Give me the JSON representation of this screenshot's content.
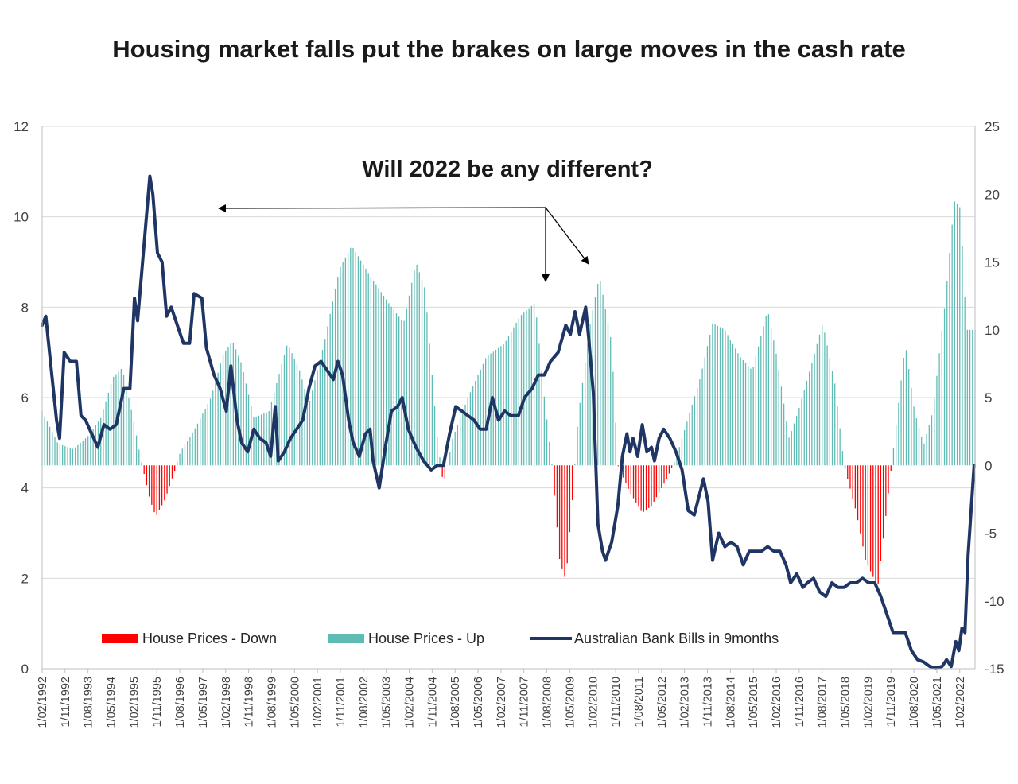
{
  "chart_data": {
    "type": "bar+line",
    "title": "Housing market falls put the brakes on large moves in the cash rate",
    "annotation": "Will 2022 be any different?",
    "left_axis": {
      "ylim": [
        0,
        12
      ],
      "ticks": [
        "0",
        "2",
        "4",
        "6",
        "8",
        "10",
        "12"
      ],
      "series": "Australian Bank Bills in 9months"
    },
    "right_axis": {
      "ylim": [
        -15,
        25
      ],
      "ticks": [
        "-15",
        "-10",
        "-5",
        "0",
        "5",
        "10",
        "15",
        "20",
        "25"
      ],
      "series": "House Prices"
    },
    "x_start": "1992-02",
    "x_end": "2022-06",
    "x_ticks": [
      "1/02/1992",
      "1/11/1992",
      "1/08/1993",
      "1/05/1994",
      "1/02/1995",
      "1/11/1995",
      "1/08/1996",
      "1/05/1997",
      "1/02/1998",
      "1/11/1998",
      "1/08/1999",
      "1/05/2000",
      "1/02/2001",
      "1/11/2001",
      "1/08/2002",
      "1/05/2003",
      "1/02/2004",
      "1/11/2004",
      "1/08/2005",
      "1/05/2006",
      "1/02/2007",
      "1/11/2007",
      "1/08/2008",
      "1/05/2009",
      "1/02/2010",
      "1/11/2010",
      "1/08/2011",
      "1/05/2012",
      "1/02/2013",
      "1/11/2013",
      "1/08/2014",
      "1/05/2015",
      "1/02/2016",
      "1/11/2016",
      "1/08/2017",
      "1/05/2018",
      "1/02/2019",
      "1/11/2019",
      "1/08/2020",
      "1/05/2021",
      "1/02/2022"
    ],
    "legend": [
      {
        "name": "House Prices - Down",
        "color": "#ff0000",
        "kind": "bar"
      },
      {
        "name": "House Prices - Up",
        "color": "#5fbcb5",
        "kind": "bar"
      },
      {
        "name": "Australian Bank Bills in 9months",
        "color": "#1f3564",
        "kind": "line"
      }
    ],
    "house_prices_keypoints": [
      [
        1992.08,
        4
      ],
      [
        1992.6,
        1.6
      ],
      [
        1993.1,
        1.2
      ],
      [
        1993.6,
        2.2
      ],
      [
        1994.0,
        3.5
      ],
      [
        1994.4,
        6.5
      ],
      [
        1994.7,
        7.2
      ],
      [
        1995.1,
        3
      ],
      [
        1995.3,
        0.5
      ],
      [
        1995.6,
        -2.5
      ],
      [
        1995.8,
        -3.8
      ],
      [
        1996.1,
        -2.5
      ],
      [
        1996.4,
        -0.5
      ],
      [
        1996.6,
        1
      ],
      [
        1997.1,
        2.8
      ],
      [
        1997.6,
        5
      ],
      [
        1998.0,
        8.2
      ],
      [
        1998.3,
        9.2
      ],
      [
        1998.6,
        7.5
      ],
      [
        1999.0,
        3.5
      ],
      [
        1999.5,
        4
      ],
      [
        2000.1,
        9
      ],
      [
        2000.5,
        7
      ],
      [
        2000.8,
        4.5
      ],
      [
        2001.3,
        9
      ],
      [
        2001.8,
        14.5
      ],
      [
        2002.2,
        16.2
      ],
      [
        2002.8,
        14
      ],
      [
        2003.4,
        12
      ],
      [
        2003.9,
        10.5
      ],
      [
        2004.3,
        15
      ],
      [
        2004.6,
        13
      ],
      [
        2005.0,
        2
      ],
      [
        2005.2,
        -1.5
      ],
      [
        2005.5,
        2
      ],
      [
        2006.0,
        5
      ],
      [
        2006.6,
        8
      ],
      [
        2007.2,
        9
      ],
      [
        2007.7,
        11
      ],
      [
        2008.2,
        12
      ],
      [
        2008.5,
        5
      ],
      [
        2008.75,
        0
      ],
      [
        2009.0,
        -7
      ],
      [
        2009.2,
        -8.5
      ],
      [
        2009.4,
        -3
      ],
      [
        2009.6,
        3.5
      ],
      [
        2010.0,
        10.5
      ],
      [
        2010.3,
        14
      ],
      [
        2010.7,
        9
      ],
      [
        2010.9,
        0
      ],
      [
        2011.3,
        -2
      ],
      [
        2011.7,
        -3.5
      ],
      [
        2012.0,
        -3
      ],
      [
        2012.5,
        -1
      ],
      [
        2012.8,
        0.5
      ],
      [
        2013.2,
        3.5
      ],
      [
        2013.6,
        6.5
      ],
      [
        2014.0,
        10.5
      ],
      [
        2014.4,
        10
      ],
      [
        2014.9,
        8
      ],
      [
        2015.3,
        7
      ],
      [
        2015.8,
        11.5
      ],
      [
        2016.1,
        8
      ],
      [
        2016.5,
        2
      ],
      [
        2016.8,
        4
      ],
      [
        2017.3,
        8
      ],
      [
        2017.6,
        10.5
      ],
      [
        2018.0,
        6
      ],
      [
        2018.3,
        0
      ],
      [
        2018.7,
        -3.5
      ],
      [
        2019.0,
        -7
      ],
      [
        2019.4,
        -9
      ],
      [
        2019.7,
        -3
      ],
      [
        2019.9,
        1
      ],
      [
        2020.3,
        9
      ],
      [
        2020.6,
        4
      ],
      [
        2020.9,
        1.5
      ],
      [
        2021.2,
        4
      ],
      [
        2021.6,
        12
      ],
      [
        2021.9,
        19.5
      ],
      [
        2022.1,
        19
      ],
      [
        2022.3,
        10
      ],
      [
        2022.5,
        10
      ]
    ],
    "bank_bills_keypoints": [
      [
        1992.08,
        7.6
      ],
      [
        1992.2,
        7.8
      ],
      [
        1992.35,
        6.8
      ],
      [
        1992.55,
        5.5
      ],
      [
        1992.65,
        5.1
      ],
      [
        1992.8,
        7.0
      ],
      [
        1993.0,
        6.8
      ],
      [
        1993.2,
        6.8
      ],
      [
        1993.35,
        5.6
      ],
      [
        1993.5,
        5.5
      ],
      [
        1993.7,
        5.2
      ],
      [
        1993.9,
        4.9
      ],
      [
        1994.1,
        5.4
      ],
      [
        1994.3,
        5.3
      ],
      [
        1994.5,
        5.4
      ],
      [
        1994.75,
        6.2
      ],
      [
        1994.95,
        6.2
      ],
      [
        1995.1,
        8.2
      ],
      [
        1995.2,
        7.7
      ],
      [
        1995.35,
        8.9
      ],
      [
        1995.6,
        10.9
      ],
      [
        1995.7,
        10.5
      ],
      [
        1995.85,
        9.2
      ],
      [
        1996.0,
        9.0
      ],
      [
        1996.15,
        7.8
      ],
      [
        1996.3,
        8.0
      ],
      [
        1996.5,
        7.6
      ],
      [
        1996.7,
        7.2
      ],
      [
        1996.9,
        7.2
      ],
      [
        1997.05,
        8.3
      ],
      [
        1997.3,
        8.2
      ],
      [
        1997.45,
        7.1
      ],
      [
        1997.7,
        6.5
      ],
      [
        1997.9,
        6.2
      ],
      [
        1998.1,
        5.7
      ],
      [
        1998.25,
        6.7
      ],
      [
        1998.45,
        5.5
      ],
      [
        1998.6,
        5.0
      ],
      [
        1998.8,
        4.8
      ],
      [
        1999.0,
        5.3
      ],
      [
        1999.2,
        5.1
      ],
      [
        1999.4,
        5.0
      ],
      [
        1999.55,
        4.7
      ],
      [
        1999.7,
        5.8
      ],
      [
        1999.8,
        4.6
      ],
      [
        2000.0,
        4.8
      ],
      [
        2000.2,
        5.1
      ],
      [
        2000.4,
        5.3
      ],
      [
        2000.6,
        5.5
      ],
      [
        2000.8,
        6.2
      ],
      [
        2001.0,
        6.7
      ],
      [
        2001.2,
        6.8
      ],
      [
        2001.4,
        6.6
      ],
      [
        2001.6,
        6.4
      ],
      [
        2001.75,
        6.8
      ],
      [
        2001.9,
        6.5
      ],
      [
        2002.1,
        5.5
      ],
      [
        2002.25,
        5.0
      ],
      [
        2002.45,
        4.7
      ],
      [
        2002.65,
        5.2
      ],
      [
        2002.8,
        5.3
      ],
      [
        2002.9,
        4.6
      ],
      [
        2003.1,
        4.0
      ],
      [
        2003.3,
        4.9
      ],
      [
        2003.5,
        5.7
      ],
      [
        2003.7,
        5.8
      ],
      [
        2003.85,
        6.0
      ],
      [
        2004.05,
        5.3
      ],
      [
        2004.3,
        4.9
      ],
      [
        2004.55,
        4.6
      ],
      [
        2004.8,
        4.4
      ],
      [
        2005.0,
        4.5
      ],
      [
        2005.2,
        4.5
      ],
      [
        2005.4,
        5.2
      ],
      [
        2005.6,
        5.8
      ],
      [
        2005.8,
        5.7
      ],
      [
        2006.0,
        5.6
      ],
      [
        2006.2,
        5.5
      ],
      [
        2006.4,
        5.3
      ],
      [
        2006.6,
        5.3
      ],
      [
        2006.8,
        6.0
      ],
      [
        2007.0,
        5.5
      ],
      [
        2007.2,
        5.7
      ],
      [
        2007.4,
        5.6
      ],
      [
        2007.65,
        5.6
      ],
      [
        2007.85,
        6.0
      ],
      [
        2008.1,
        6.2
      ],
      [
        2008.3,
        6.5
      ],
      [
        2008.5,
        6.5
      ],
      [
        2008.7,
        6.8
      ],
      [
        2008.95,
        7.0
      ],
      [
        2009.2,
        7.6
      ],
      [
        2009.35,
        7.4
      ],
      [
        2009.5,
        7.9
      ],
      [
        2009.65,
        7.4
      ],
      [
        2009.85,
        8.0
      ],
      [
        2009.95,
        7.3
      ],
      [
        2010.1,
        6.1
      ],
      [
        2010.25,
        3.2
      ],
      [
        2010.4,
        2.6
      ],
      [
        2010.5,
        2.4
      ],
      [
        2010.7,
        2.8
      ],
      [
        2010.9,
        3.6
      ],
      [
        2011.05,
        4.7
      ],
      [
        2011.2,
        5.2
      ],
      [
        2011.3,
        4.8
      ],
      [
        2011.4,
        5.1
      ],
      [
        2011.55,
        4.7
      ],
      [
        2011.7,
        5.4
      ],
      [
        2011.85,
        4.8
      ],
      [
        2012.0,
        4.9
      ],
      [
        2012.1,
        4.6
      ],
      [
        2012.25,
        5.1
      ],
      [
        2012.4,
        5.3
      ],
      [
        2012.6,
        5.1
      ],
      [
        2012.8,
        4.8
      ],
      [
        2013.0,
        4.4
      ],
      [
        2013.2,
        3.5
      ],
      [
        2013.4,
        3.4
      ],
      [
        2013.55,
        3.8
      ],
      [
        2013.7,
        4.2
      ],
      [
        2013.85,
        3.7
      ],
      [
        2014.0,
        2.4
      ],
      [
        2014.2,
        3.0
      ],
      [
        2014.4,
        2.7
      ],
      [
        2014.6,
        2.8
      ],
      [
        2014.8,
        2.7
      ],
      [
        2015.0,
        2.3
      ],
      [
        2015.2,
        2.6
      ],
      [
        2015.4,
        2.6
      ],
      [
        2015.6,
        2.6
      ],
      [
        2015.8,
        2.7
      ],
      [
        2016.0,
        2.6
      ],
      [
        2016.2,
        2.6
      ],
      [
        2016.4,
        2.3
      ],
      [
        2016.55,
        1.9
      ],
      [
        2016.75,
        2.1
      ],
      [
        2016.95,
        1.8
      ],
      [
        2017.1,
        1.9
      ],
      [
        2017.3,
        2.0
      ],
      [
        2017.5,
        1.7
      ],
      [
        2017.7,
        1.6
      ],
      [
        2017.9,
        1.9
      ],
      [
        2018.1,
        1.8
      ],
      [
        2018.3,
        1.8
      ],
      [
        2018.5,
        1.9
      ],
      [
        2018.7,
        1.9
      ],
      [
        2018.9,
        2.0
      ],
      [
        2019.1,
        1.9
      ],
      [
        2019.3,
        1.9
      ],
      [
        2019.5,
        1.6
      ],
      [
        2019.7,
        1.2
      ],
      [
        2019.9,
        0.8
      ],
      [
        2020.1,
        0.8
      ],
      [
        2020.3,
        0.8
      ],
      [
        2020.5,
        0.4
      ],
      [
        2020.7,
        0.2
      ],
      [
        2020.9,
        0.15
      ],
      [
        2021.1,
        0.05
      ],
      [
        2021.3,
        0.02
      ],
      [
        2021.5,
        0.05
      ],
      [
        2021.65,
        0.2
      ],
      [
        2021.8,
        0.05
      ],
      [
        2021.95,
        0.6
      ],
      [
        2022.05,
        0.4
      ],
      [
        2022.15,
        0.9
      ],
      [
        2022.25,
        0.8
      ],
      [
        2022.35,
        2.5
      ],
      [
        2022.45,
        3.5
      ],
      [
        2022.55,
        4.5
      ]
    ]
  }
}
